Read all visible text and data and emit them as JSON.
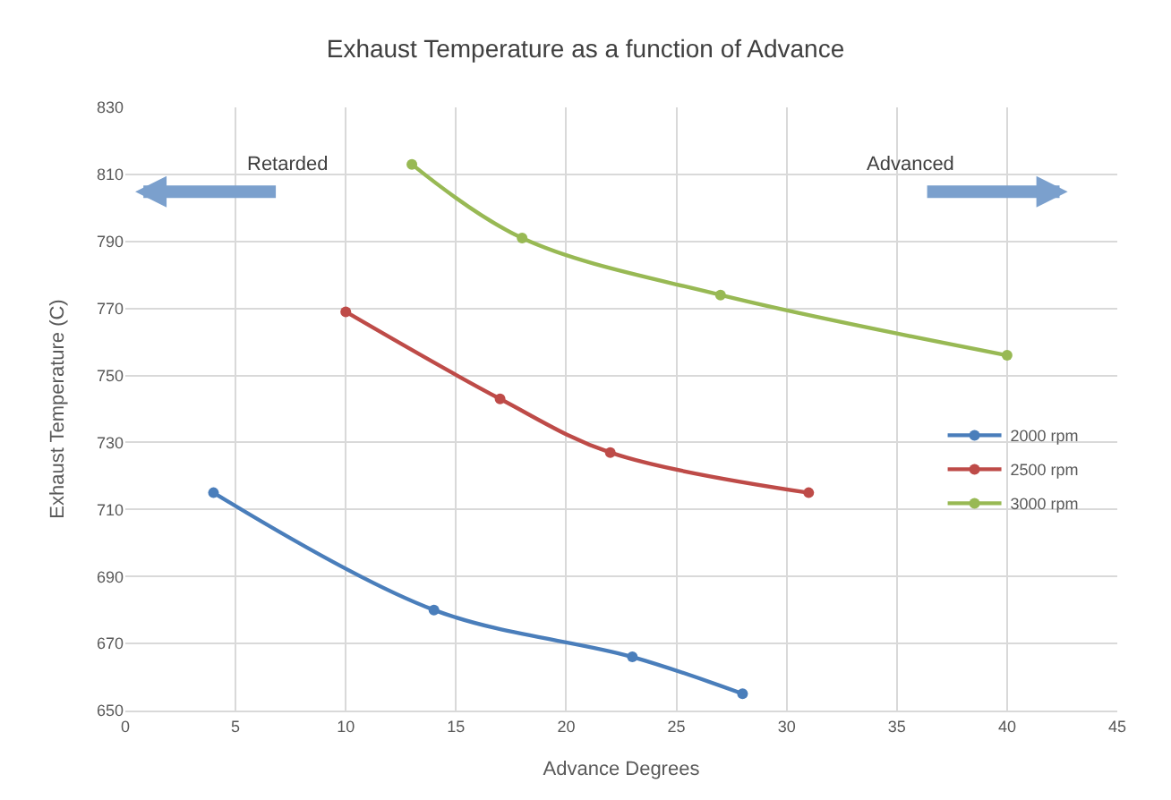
{
  "chart_data": {
    "type": "line",
    "title": "Exhaust Temperature as a function of Advance",
    "xlabel": "Advance Degrees",
    "ylabel": "Exhaust Temperature (C)",
    "series": [
      {
        "name": "2000 rpm",
        "color": "#4a7ebb",
        "x": [
          4,
          14,
          23,
          28
        ],
        "values": [
          715,
          680,
          666,
          655
        ]
      },
      {
        "name": "2500 rpm",
        "color": "#be4b48",
        "x": [
          10,
          17,
          22,
          31
        ],
        "values": [
          769,
          743,
          727,
          715
        ]
      },
      {
        "name": "3000 rpm",
        "color": "#98b954",
        "x": [
          13,
          18,
          27,
          40
        ],
        "values": [
          813,
          791,
          774,
          756
        ]
      }
    ],
    "annotations": [
      "Retarded",
      "Advanced"
    ],
    "xlim": [
      0,
      45
    ],
    "xticks": [
      0,
      5,
      10,
      15,
      20,
      25,
      30,
      35,
      40,
      45
    ],
    "ylim": [
      650,
      830
    ],
    "yticks": [
      650,
      670,
      690,
      710,
      730,
      750,
      770,
      790,
      810,
      830
    ],
    "grid": true,
    "legend": "right",
    "marker": "circle",
    "line_style": "solid"
  }
}
